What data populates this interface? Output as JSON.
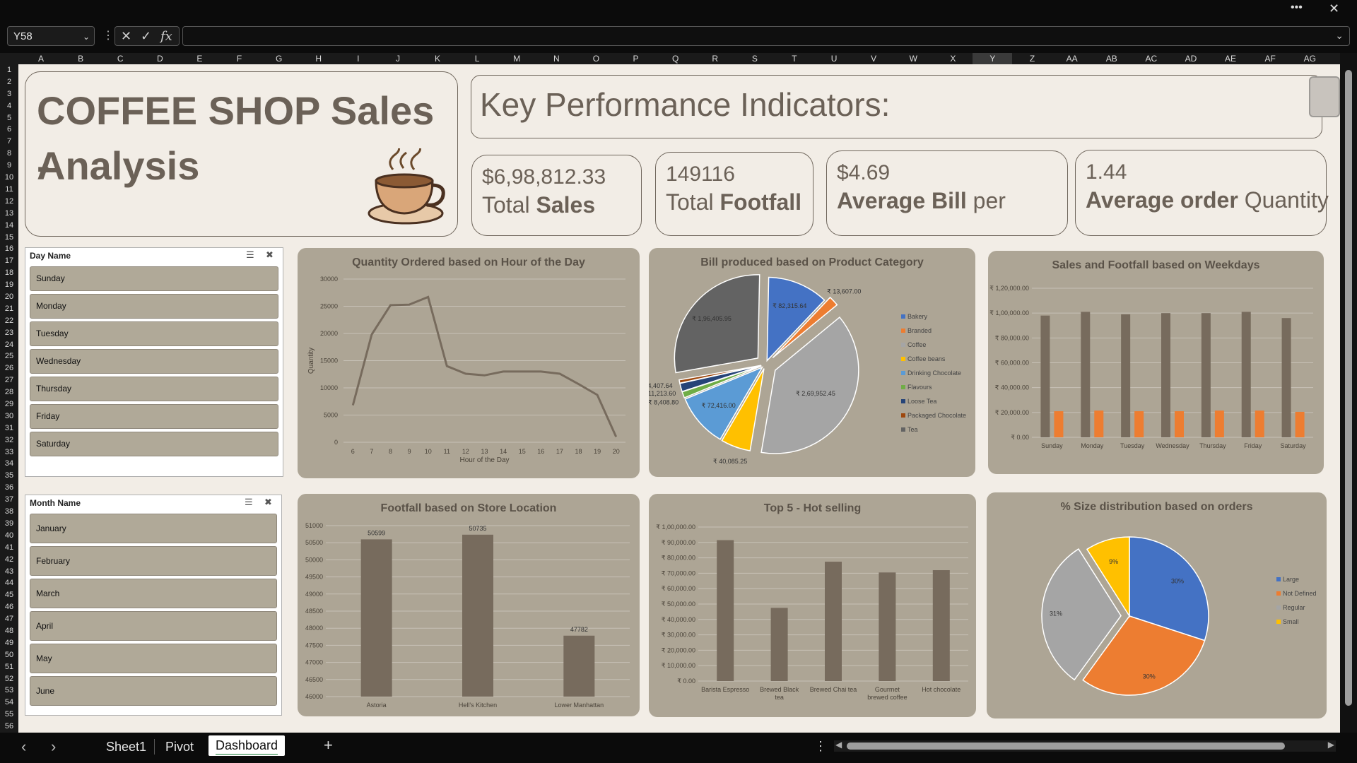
{
  "window": {
    "more_label": "•••",
    "close_label": "✕"
  },
  "formula_bar": {
    "name_box": "Y58",
    "cancel": "✕",
    "enter": "✓",
    "fx": "fx",
    "value": ""
  },
  "columns": [
    "A",
    "B",
    "C",
    "D",
    "E",
    "F",
    "G",
    "H",
    "I",
    "J",
    "K",
    "L",
    "M",
    "N",
    "O",
    "P",
    "Q",
    "R",
    "S",
    "T",
    "U",
    "V",
    "W",
    "X",
    "Y",
    "Z",
    "AA",
    "AB",
    "AC",
    "AD",
    "AE",
    "AF",
    "AG"
  ],
  "selected_column": "Y",
  "rows_count": 56,
  "dashboard": {
    "title_line1": "COFFEE SHOP Sales -",
    "title_line2": "Analysis",
    "kpi_header": "Key Performance Indicators:",
    "kpis": [
      {
        "value": "$6,98,812.33",
        "label_a": "Total ",
        "label_b": "Sales",
        "label_c": ""
      },
      {
        "value": "149116",
        "label_a": "Total ",
        "label_b": "Footfall",
        "label_c": ""
      },
      {
        "value": "$4.69",
        "label_a": "",
        "label_b": "Average Bill",
        "label_c": " per"
      },
      {
        "value": "1.44",
        "label_a": "",
        "label_b": "Average order",
        "label_c": " Quantity"
      }
    ]
  },
  "slicers": {
    "day": {
      "title": "Day Name",
      "items": [
        "Sunday",
        "Monday",
        "Tuesday",
        "Wednesday",
        "Thursday",
        "Friday",
        "Saturday"
      ]
    },
    "month": {
      "title": "Month Name",
      "items": [
        "January",
        "February",
        "March",
        "April",
        "May",
        "June"
      ]
    }
  },
  "chart_data": [
    {
      "type": "line",
      "title": "Quantity Ordered based on Hour of the Day",
      "xlabel": "Hour of the Day",
      "ylabel": "Quantity",
      "x": [
        6,
        7,
        8,
        9,
        10,
        11,
        12,
        13,
        14,
        15,
        16,
        17,
        18,
        19,
        20
      ],
      "values": [
        6800,
        19800,
        25200,
        25300,
        26700,
        14000,
        12600,
        12300,
        13000,
        13000,
        13000,
        12600,
        10700,
        8700,
        1000
      ],
      "ylim": [
        0,
        30000
      ],
      "yticks": [
        "0",
        "5000",
        "10000",
        "15000",
        "20000",
        "25000",
        "30000"
      ],
      "grid": true,
      "color": "#776b5d"
    },
    {
      "type": "pie",
      "title": "Bill produced based on Product Category",
      "categories": [
        "Bakery",
        "Branded",
        "Coffee",
        "Coffee beans",
        "Drinking Chocolate",
        "Flavours",
        "Loose Tea",
        "Packaged Chocolate",
        "Tea"
      ],
      "values": [
        82315.64,
        13607.0,
        269952.45,
        40085.25,
        72416.0,
        8408.8,
        11213.6,
        4407.64,
        196405.95
      ],
      "data_labels": [
        "₹ 82,315.64",
        "₹ 13,607.00",
        "₹ 2,69,952.45",
        "₹ 40,085.25",
        "₹ 72,416.00",
        "₹ 8,408.80",
        "₹ 11,213.60",
        "₹ 4,407.64",
        "₹ 1,96,405.95"
      ],
      "colors": [
        "#4472c4",
        "#ed7d31",
        "#a5a5a5",
        "#ffc000",
        "#5b9bd5",
        "#70ad47",
        "#264478",
        "#9e480e",
        "#636363"
      ],
      "legend": "right"
    },
    {
      "type": "bar",
      "title": "Sales and Footfall based on Weekdays",
      "categories": [
        "Sunday",
        "Monday",
        "Tuesday",
        "Wednesday",
        "Thursday",
        "Friday",
        "Saturday"
      ],
      "series": [
        {
          "values": [
            98000,
            101000,
            99000,
            100000,
            100000,
            101000,
            96000
          ],
          "color": "#776b5d"
        },
        {
          "values": [
            21000,
            21500,
            21000,
            21000,
            21500,
            21500,
            20500
          ],
          "color": "#ed7d31"
        }
      ],
      "ylim": [
        0,
        120000
      ],
      "yticks": [
        "₹ 0.00",
        "₹ 20,000.00",
        "₹ 40,000.00",
        "₹ 60,000.00",
        "₹ 80,000.00",
        "₹ 1,00,000.00",
        "₹ 1,20,000.00"
      ],
      "grid": true
    },
    {
      "type": "bar",
      "title": "Footfall based on Store Location",
      "categories": [
        "Astoria",
        "Hell's Kitchen",
        "Lower Manhattan"
      ],
      "values": [
        50599,
        50735,
        47782
      ],
      "data_labels": [
        "50599",
        "50735",
        "47782"
      ],
      "ylim": [
        46000,
        51000
      ],
      "yticks": [
        "46000",
        "46500",
        "47000",
        "47500",
        "48000",
        "48500",
        "49000",
        "49500",
        "50000",
        "50500",
        "51000"
      ],
      "grid": true,
      "color": "#776b5d"
    },
    {
      "type": "bar",
      "title": "Top 5 - Hot selling",
      "categories": [
        "Barista Espresso",
        "Brewed Black tea",
        "Brewed Chai tea",
        "Gourmet brewed coffee",
        "Hot chocolate"
      ],
      "category_lines": [
        [
          "Barista Espresso"
        ],
        [
          "Brewed Black",
          "tea"
        ],
        [
          "Brewed Chai tea"
        ],
        [
          "Gourmet",
          "brewed coffee"
        ],
        [
          "Hot chocolate"
        ]
      ],
      "values": [
        91500,
        47500,
        77500,
        70500,
        72000
      ],
      "ylim": [
        0,
        100000
      ],
      "yticks": [
        "₹ 0.00",
        "₹ 10,000.00",
        "₹ 20,000.00",
        "₹ 30,000.00",
        "₹ 40,000.00",
        "₹ 50,000.00",
        "₹ 60,000.00",
        "₹ 70,000.00",
        "₹ 80,000.00",
        "₹ 90,000.00",
        "₹ 1,00,000.00"
      ],
      "grid": true,
      "color": "#776b5d"
    },
    {
      "type": "pie",
      "title": "% Size distribution based on orders",
      "categories": [
        "Large",
        "Not Defined",
        "Regular",
        "Small"
      ],
      "values": [
        30,
        30,
        31,
        9
      ],
      "data_labels": [
        "30%",
        "30%",
        "31%",
        "9%"
      ],
      "colors": [
        "#4472c4",
        "#ed7d31",
        "#a5a5a5",
        "#ffc000"
      ],
      "legend": "right"
    }
  ],
  "sheet_tabs": [
    "Sheet1",
    "Pivot",
    "Dashboard"
  ],
  "active_tab": "Dashboard",
  "tab_nav": {
    "prev": "‹",
    "next": "›",
    "add": "+",
    "options": "⋮"
  }
}
